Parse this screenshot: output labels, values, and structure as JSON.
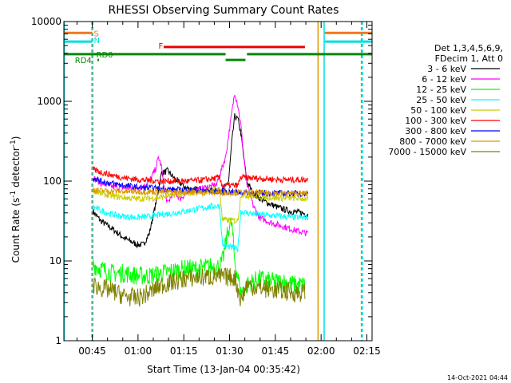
{
  "chart_data": {
    "type": "line",
    "title": "RHESSI Observing Summary Count Rates",
    "xlabel": "Start Time (13-Jan-04 00:35:42)",
    "ylabel_parts": {
      "main": "Count Rate (s",
      "sup1": "-1",
      "mid": " detector",
      "sup2": "-1",
      "end": ")"
    },
    "ylog": true,
    "ylim": [
      1,
      10000
    ],
    "xlim_min": [
      0,
      101
    ],
    "xticks": [
      {
        "v": 9.3,
        "label": "00:45"
      },
      {
        "v": 24.3,
        "label": "01:00"
      },
      {
        "v": 39.3,
        "label": "01:15"
      },
      {
        "v": 54.3,
        "label": "01:30"
      },
      {
        "v": 69.3,
        "label": "01:45"
      },
      {
        "v": 84.3,
        "label": "02:00"
      },
      {
        "v": 99.3,
        "label": "02:15"
      }
    ],
    "yticks": [
      {
        "v": 1,
        "label": "1"
      },
      {
        "v": 10,
        "label": "10"
      },
      {
        "v": 100,
        "label": "100"
      },
      {
        "v": 1000,
        "label": "1000"
      },
      {
        "v": 10000,
        "label": "10000"
      }
    ],
    "legend": {
      "header": [
        "Det 1,3,4,5,6,9,",
        "FDecim 1, Att 0"
      ],
      "placement": "right"
    },
    "series": [
      {
        "name": "3 - 6 keV",
        "color": "#000000",
        "points": [
          [
            9.5,
            42
          ],
          [
            12,
            32
          ],
          [
            16,
            25
          ],
          [
            20,
            19
          ],
          [
            24,
            16
          ],
          [
            26,
            16
          ],
          [
            28,
            22
          ],
          [
            30,
            50
          ],
          [
            32,
            125
          ],
          [
            34,
            135
          ],
          [
            36,
            110
          ],
          [
            38,
            95
          ],
          [
            40,
            82
          ],
          [
            44,
            78
          ],
          [
            48,
            76
          ],
          [
            52,
            75
          ],
          [
            54,
            100
          ],
          [
            55,
            300
          ],
          [
            56,
            650
          ],
          [
            57,
            600
          ],
          [
            58,
            400
          ],
          [
            59,
            190
          ],
          [
            60,
            100
          ],
          [
            62,
            70
          ],
          [
            66,
            55
          ],
          [
            70,
            47
          ],
          [
            74,
            42
          ],
          [
            78,
            40
          ],
          [
            80,
            38
          ]
        ]
      },
      {
        "name": "6 - 12 keV",
        "color": "#ff00ff",
        "points": [
          [
            9.5,
            110
          ],
          [
            12,
            95
          ],
          [
            16,
            85
          ],
          [
            20,
            82
          ],
          [
            24,
            80
          ],
          [
            26,
            85
          ],
          [
            28,
            100
          ],
          [
            30,
            140
          ],
          [
            31,
            200
          ],
          [
            32,
            150
          ],
          [
            33,
            75
          ],
          [
            34,
            52
          ],
          [
            36,
            75
          ],
          [
            38,
            60
          ],
          [
            40,
            70
          ],
          [
            42,
            75
          ],
          [
            46,
            82
          ],
          [
            50,
            90
          ],
          [
            53,
            200
          ],
          [
            55,
            700
          ],
          [
            56,
            1300
          ],
          [
            57,
            900
          ],
          [
            58,
            500
          ],
          [
            59,
            200
          ],
          [
            60,
            90
          ],
          [
            62,
            50
          ],
          [
            64,
            35
          ],
          [
            68,
            30
          ],
          [
            72,
            27
          ],
          [
            76,
            24
          ],
          [
            80,
            22
          ]
        ]
      },
      {
        "name": "12 - 25 keV",
        "color": "#00ff00",
        "points": [
          [
            9.5,
            9
          ],
          [
            12,
            8
          ],
          [
            16,
            7
          ],
          [
            20,
            7
          ],
          [
            24,
            6.5
          ],
          [
            28,
            6.5
          ],
          [
            32,
            7
          ],
          [
            36,
            7.5
          ],
          [
            40,
            8
          ],
          [
            44,
            8
          ],
          [
            48,
            8.5
          ],
          [
            51,
            8.5
          ],
          [
            52,
            10
          ],
          [
            54,
            26
          ],
          [
            55,
            30
          ],
          [
            56,
            10
          ],
          [
            58,
            4
          ],
          [
            60,
            5
          ],
          [
            64,
            6
          ],
          [
            68,
            5.5
          ],
          [
            72,
            5.5
          ],
          [
            76,
            5
          ],
          [
            79,
            5
          ]
        ]
      },
      {
        "name": "25 - 50 keV",
        "color": "#00ffff",
        "points": [
          [
            9.5,
            48
          ],
          [
            12,
            43
          ],
          [
            16,
            38
          ],
          [
            20,
            36
          ],
          [
            24,
            35
          ],
          [
            28,
            36
          ],
          [
            32,
            38
          ],
          [
            36,
            40
          ],
          [
            40,
            42
          ],
          [
            44,
            45
          ],
          [
            48,
            48
          ],
          [
            51,
            49
          ],
          [
            52,
            16
          ],
          [
            54,
            15
          ],
          [
            57,
            14
          ],
          [
            58,
            42
          ],
          [
            60,
            40
          ],
          [
            64,
            38
          ],
          [
            68,
            37
          ],
          [
            72,
            36
          ],
          [
            76,
            35
          ],
          [
            80,
            35
          ]
        ]
      },
      {
        "name": "50 - 100 keV",
        "color": "#cccc00",
        "points": [
          [
            9.5,
            78
          ],
          [
            12,
            70
          ],
          [
            16,
            65
          ],
          [
            20,
            62
          ],
          [
            24,
            60
          ],
          [
            28,
            61
          ],
          [
            32,
            63
          ],
          [
            36,
            67
          ],
          [
            40,
            70
          ],
          [
            44,
            74
          ],
          [
            48,
            78
          ],
          [
            51,
            80
          ],
          [
            52,
            33
          ],
          [
            54,
            32
          ],
          [
            57,
            32
          ],
          [
            58,
            68
          ],
          [
            60,
            66
          ],
          [
            64,
            64
          ],
          [
            68,
            62
          ],
          [
            72,
            61
          ],
          [
            76,
            61
          ],
          [
            80,
            60
          ]
        ]
      },
      {
        "name": "100 - 300 keV",
        "color": "#ff0000",
        "points": [
          [
            9.5,
            140
          ],
          [
            12,
            130
          ],
          [
            16,
            118
          ],
          [
            20,
            110
          ],
          [
            24,
            105
          ],
          [
            28,
            102
          ],
          [
            32,
            100
          ],
          [
            36,
            100
          ],
          [
            40,
            100
          ],
          [
            44,
            102
          ],
          [
            48,
            106
          ],
          [
            51,
            110
          ],
          [
            52,
            88
          ],
          [
            57,
            88
          ],
          [
            58,
            112
          ],
          [
            60,
            110
          ],
          [
            64,
            108
          ],
          [
            68,
            106
          ],
          [
            72,
            104
          ],
          [
            76,
            104
          ],
          [
            80,
            105
          ]
        ]
      },
      {
        "name": "300 - 800 keV",
        "color": "#0000ff",
        "points": [
          [
            9.5,
            112
          ],
          [
            12,
            100
          ],
          [
            16,
            93
          ],
          [
            20,
            88
          ],
          [
            24,
            84
          ],
          [
            28,
            82
          ],
          [
            32,
            80
          ],
          [
            36,
            78
          ],
          [
            40,
            77
          ],
          [
            44,
            76
          ],
          [
            48,
            75
          ],
          [
            52,
            74
          ],
          [
            56,
            73
          ],
          [
            60,
            72
          ],
          [
            64,
            71
          ],
          [
            68,
            71
          ],
          [
            72,
            70
          ],
          [
            76,
            70
          ],
          [
            80,
            70
          ]
        ]
      },
      {
        "name": "800 - 7000 keV",
        "color": "#dd9900",
        "points": [
          [
            9.5,
            78
          ],
          [
            12,
            76
          ],
          [
            16,
            75
          ],
          [
            20,
            74
          ],
          [
            24,
            74
          ],
          [
            28,
            74
          ],
          [
            32,
            73
          ],
          [
            36,
            73
          ],
          [
            40,
            73
          ],
          [
            44,
            72
          ],
          [
            48,
            72
          ],
          [
            52,
            72
          ],
          [
            56,
            72
          ],
          [
            60,
            71
          ],
          [
            64,
            71
          ],
          [
            68,
            71
          ],
          [
            72,
            70
          ],
          [
            76,
            70
          ],
          [
            80,
            70
          ]
        ]
      },
      {
        "name": "7000 - 15000 keV",
        "color": "#808000",
        "points": [
          [
            9.5,
            5
          ],
          [
            12,
            4.6
          ],
          [
            16,
            4.2
          ],
          [
            20,
            3.6
          ],
          [
            24,
            3.4
          ],
          [
            28,
            4
          ],
          [
            32,
            5
          ],
          [
            36,
            5.5
          ],
          [
            40,
            6
          ],
          [
            44,
            6.2
          ],
          [
            48,
            6.3
          ],
          [
            52,
            6.3
          ],
          [
            56,
            6.2
          ],
          [
            58,
            3.2
          ],
          [
            60,
            5
          ],
          [
            64,
            4.6
          ],
          [
            68,
            4.4
          ],
          [
            72,
            4.2
          ],
          [
            76,
            4
          ],
          [
            79,
            4
          ]
        ]
      }
    ],
    "flags": [
      {
        "label": "S",
        "color": "#ee7722",
        "segments": [
          [
            0,
            9.3
          ],
          [
            85.5,
            101
          ]
        ],
        "level": 7200
      },
      {
        "label": "N",
        "color": "#00dddd",
        "segments": [
          [
            0,
            9.3
          ],
          [
            85.5,
            101
          ]
        ],
        "level": 5600
      },
      {
        "label": "F",
        "color": "#ee0000",
        "segments": [
          [
            32.7,
            79
          ]
        ],
        "level": 4800
      },
      {
        "label": "RD0",
        "color": "#008800",
        "segments": [
          [
            0,
            53
          ],
          [
            60,
            101
          ]
        ],
        "level": 3900
      },
      {
        "label": "RD4",
        "color": "#008800",
        "segments": [
          [
            11,
            11.5
          ],
          [
            53,
            59.5
          ]
        ],
        "level": 3300
      }
    ],
    "vlines": [
      {
        "x": 0.1,
        "color": "#00dddd",
        "style": "solid"
      },
      {
        "x": 9.2,
        "color": "#ee7722",
        "style": "dashed"
      },
      {
        "x": 9.5,
        "color": "#00dddd",
        "style": "dashed"
      },
      {
        "x": 83.3,
        "color": "#dd9900",
        "style": "solid"
      },
      {
        "x": 85.3,
        "color": "#00dddd",
        "style": "solid"
      },
      {
        "x": 97.5,
        "color": "#ee7722",
        "style": "dashed"
      },
      {
        "x": 97.8,
        "color": "#00dddd",
        "style": "dashed"
      }
    ]
  },
  "footer": {
    "timestamp": "14-Oct-2021 04:44"
  }
}
